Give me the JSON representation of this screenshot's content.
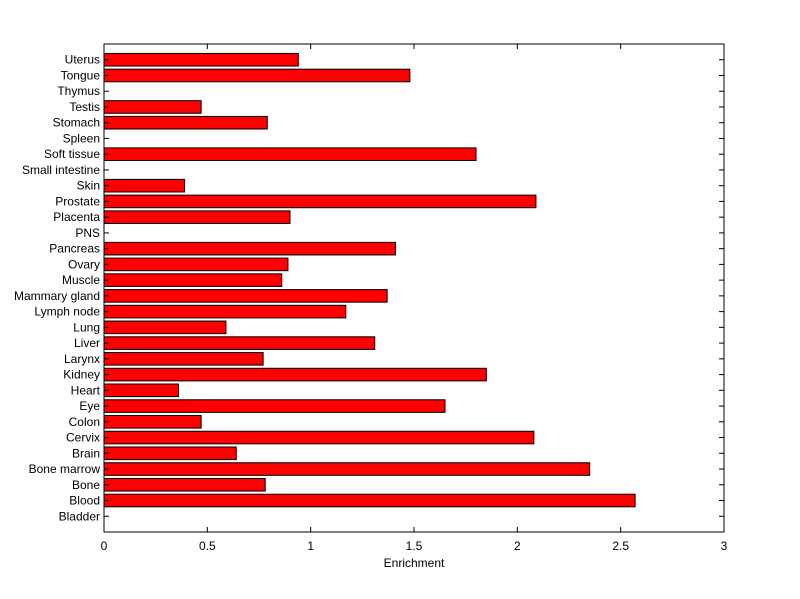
{
  "chart_data": {
    "type": "bar",
    "orientation": "horizontal",
    "title": "",
    "xlabel": "Enrichment",
    "ylabel": "",
    "xlim": [
      0,
      3
    ],
    "xticks": [
      "0",
      "0.5",
      "1",
      "1.5",
      "2",
      "2.5",
      "3"
    ],
    "grid": false,
    "bar_color": "#ff0000",
    "edge_color": "#000000",
    "categories": [
      "Bladder",
      "Blood",
      "Bone",
      "Bone marrow",
      "Brain",
      "Cervix",
      "Colon",
      "Eye",
      "Heart",
      "Kidney",
      "Larynx",
      "Liver",
      "Lung",
      "Lymph node",
      "Mammary gland",
      "Muscle",
      "Ovary",
      "Pancreas",
      "PNS",
      "Placenta",
      "Prostate",
      "Skin",
      "Small intestine",
      "Soft tissue",
      "Spleen",
      "Stomach",
      "Testis",
      "Thymus",
      "Tongue",
      "Uterus"
    ],
    "values": [
      0,
      2.57,
      0.78,
      2.35,
      0.64,
      2.08,
      0.47,
      1.65,
      0.36,
      1.85,
      0.77,
      1.31,
      0.59,
      1.17,
      1.37,
      0.86,
      0.89,
      1.41,
      0,
      0.9,
      2.09,
      0.39,
      0,
      1.8,
      0,
      0.79,
      0.47,
      0,
      1.48,
      0.94
    ]
  }
}
